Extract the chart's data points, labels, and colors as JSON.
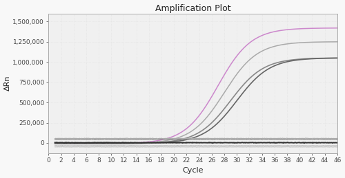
{
  "title": "Amplification Plot",
  "xlabel": "Cycle",
  "ylabel": "ΔRn",
  "xlim": [
    0,
    46
  ],
  "ylim": [
    -125000,
    1600000
  ],
  "xticks": [
    0,
    2,
    4,
    6,
    8,
    10,
    12,
    14,
    16,
    18,
    20,
    22,
    24,
    26,
    28,
    30,
    32,
    34,
    36,
    38,
    40,
    42,
    44,
    46
  ],
  "yticks": [
    0,
    250000,
    500000,
    750000,
    1000000,
    1250000,
    1500000
  ],
  "ytick_labels": [
    "0",
    "250,000",
    "500,000",
    "750,000",
    "1,000,000",
    "1,250,000",
    "1,500,000"
  ],
  "background_color": "#f8f8f8",
  "plot_bg_color": "#f0f0f0",
  "grid_color": "#e0e0e0",
  "curves": [
    {
      "midpoint": 27.0,
      "L": 1430000,
      "k": 0.38,
      "baseline": -8000,
      "color": "#cc88cc",
      "lw": 1.1
    },
    {
      "midpoint": 28.0,
      "L": 1260000,
      "k": 0.38,
      "baseline": -8000,
      "color": "#aaaaaa",
      "lw": 1.1
    },
    {
      "midpoint": 29.0,
      "L": 1060000,
      "k": 0.38,
      "baseline": -8000,
      "color": "#888888",
      "lw": 1.2
    },
    {
      "midpoint": 30.0,
      "L": 1060000,
      "k": 0.38,
      "baseline": -8000,
      "color": "#666666",
      "lw": 1.2
    }
  ],
  "flat_lines": [
    {
      "value": 3000,
      "color": "#333333",
      "lw": 1.4
    },
    {
      "value": 45000,
      "color": "#888888",
      "lw": 0.9
    },
    {
      "value": 55000,
      "color": "#aaaaaa",
      "lw": 0.9
    },
    {
      "value": -35000,
      "color": "#bbbbbb",
      "lw": 0.9
    },
    {
      "value": -50000,
      "color": "#cccccc",
      "lw": 0.9
    }
  ],
  "title_fontsize": 9,
  "axis_fontsize": 8,
  "tick_fontsize": 6.5
}
